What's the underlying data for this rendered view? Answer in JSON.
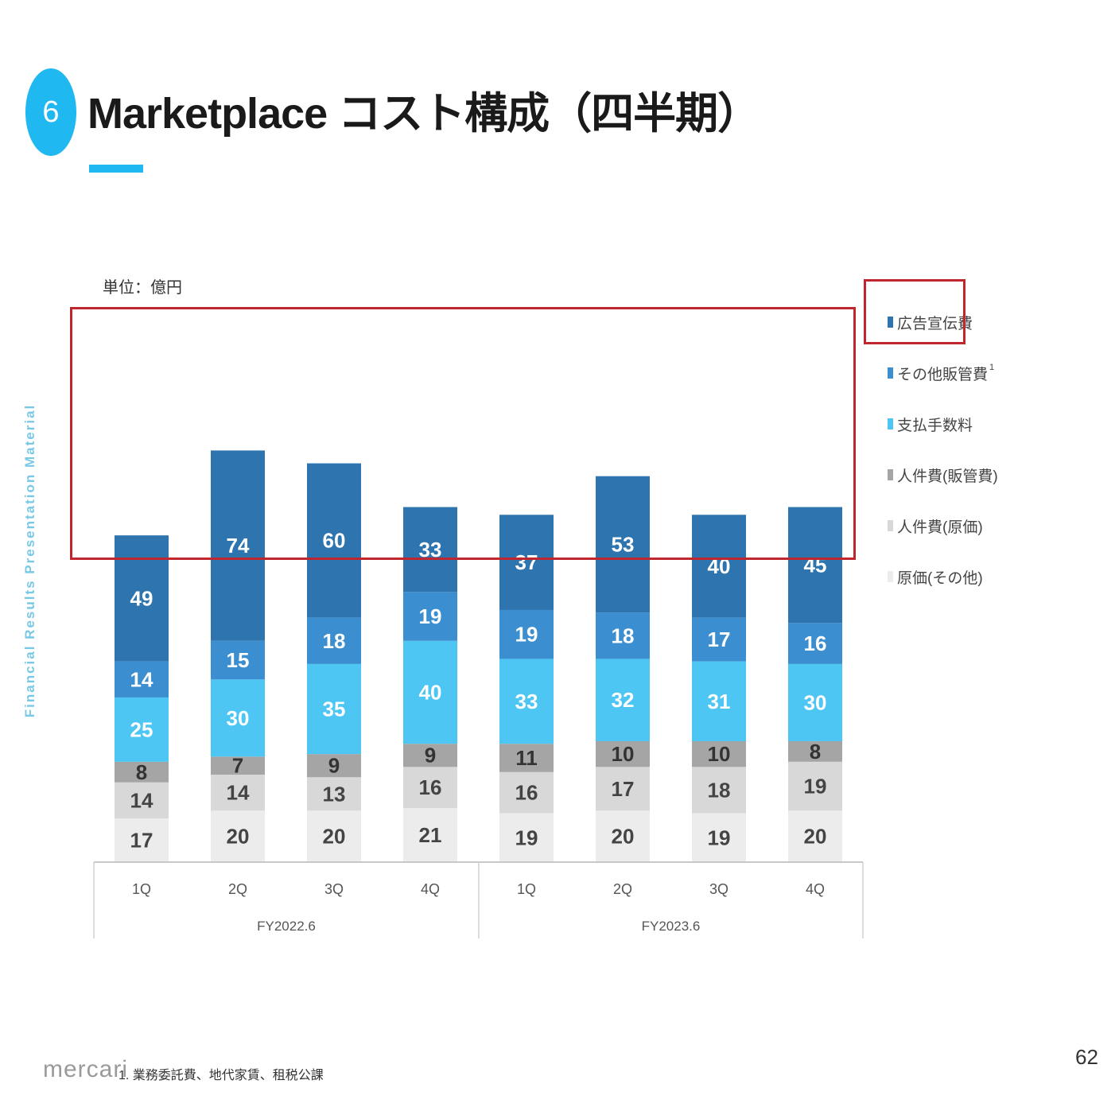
{
  "header": {
    "section_number": "6",
    "title": "Marketplace コスト構成（四半期）"
  },
  "side_label": "Financial Results Presentation Material",
  "page_number": "62",
  "footer": {
    "logo_text": "mercari",
    "footnote": "1. 業務委託費、地代家賃、租税公課"
  },
  "chart_data": {
    "type": "bar",
    "stacked": true,
    "unit_label": "単位：億円",
    "categories": [
      "1Q",
      "2Q",
      "3Q",
      "4Q",
      "1Q",
      "2Q",
      "3Q",
      "4Q"
    ],
    "groups": [
      {
        "label": "FY2022.6",
        "categories": [
          "1Q",
          "2Q",
          "3Q",
          "4Q"
        ]
      },
      {
        "label": "FY2023.6",
        "categories": [
          "1Q",
          "2Q",
          "3Q",
          "4Q"
        ]
      }
    ],
    "series": [
      {
        "name": "原価(その他)",
        "color": "#ececec",
        "label_color": "#444444",
        "values": [
          17,
          20,
          20,
          21,
          19,
          20,
          19,
          20
        ]
      },
      {
        "name": "人件費(原価)",
        "color": "#d8d8d8",
        "label_color": "#444444",
        "values": [
          14,
          14,
          13,
          16,
          16,
          17,
          18,
          19
        ]
      },
      {
        "name": "人件費(販管費)",
        "color": "#a5a5a5",
        "label_color": "#333333",
        "values": [
          8,
          7,
          9,
          9,
          11,
          10,
          10,
          8
        ]
      },
      {
        "name": "支払手数料",
        "color": "#4dc6f4",
        "label_color": "#ffffff",
        "values": [
          25,
          30,
          35,
          40,
          33,
          32,
          31,
          30
        ]
      },
      {
        "name": "その他販管費",
        "name_suffix": "1",
        "color": "#3b8fd0",
        "label_color": "#ffffff",
        "values": [
          14,
          15,
          18,
          19,
          19,
          18,
          17,
          16
        ]
      },
      {
        "name": "広告宣伝費",
        "color": "#2e75b0",
        "label_color": "#ffffff",
        "values": [
          49,
          74,
          60,
          33,
          37,
          53,
          40,
          45
        ]
      }
    ],
    "legend_order": [
      "広告宣伝費",
      "その他販管費",
      "支払手数料",
      "人件費(販管費)",
      "人件費(原価)",
      "原価(その他)"
    ],
    "highlighted_series": "広告宣伝費",
    "highlight_color": "#c0262d",
    "legend_position": "right"
  }
}
